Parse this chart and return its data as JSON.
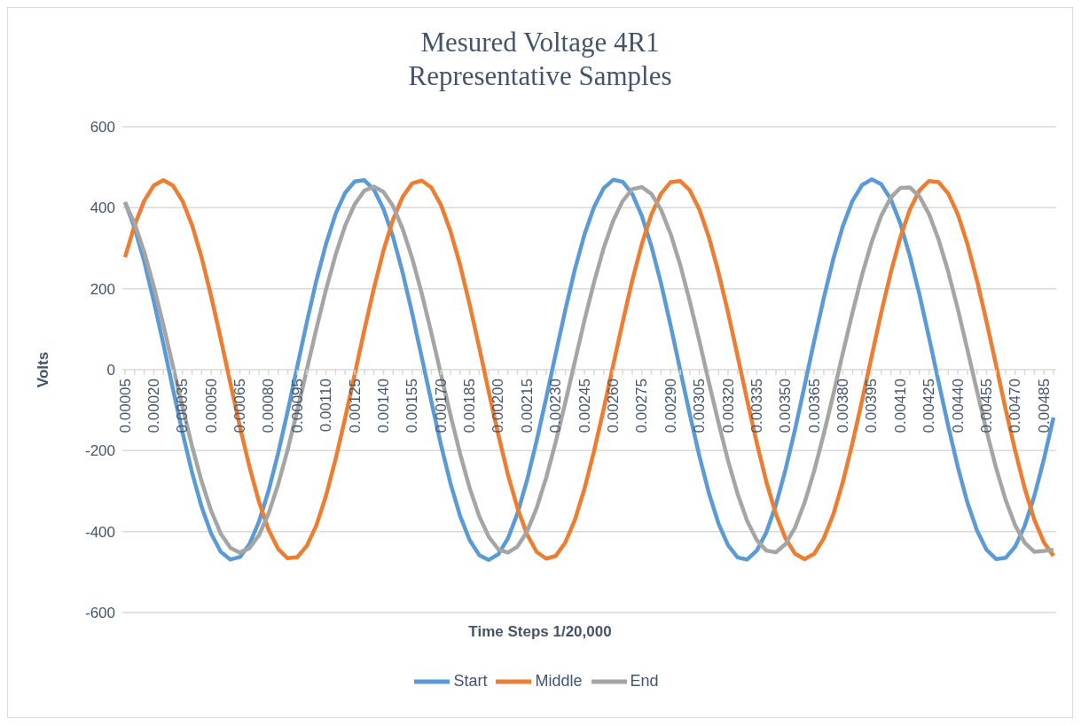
{
  "chart_data": {
    "type": "line",
    "title": "Mesured Voltage 4R1\nRepresentative Samples",
    "xlabel": "Time Steps 1/20,000",
    "ylabel": "Volts",
    "categories": [
      "0.00005",
      null,
      null,
      "0.00020",
      null,
      null,
      "0.00035",
      null,
      null,
      "0.00050",
      null,
      null,
      "0.00065",
      null,
      null,
      "0.00080",
      null,
      null,
      "0.00095",
      null,
      null,
      "0.00110",
      null,
      null,
      "0.00125",
      null,
      null,
      "0.00140",
      null,
      null,
      "0.00155",
      null,
      null,
      "0.00170",
      null,
      null,
      "0.00185",
      null,
      null,
      "0.00200",
      null,
      null,
      "0.00215",
      null,
      null,
      "0.00230",
      null,
      null,
      "0.00245",
      null,
      null,
      "0.00260",
      null,
      null,
      "0.00275",
      null,
      null,
      "0.00290",
      null,
      null,
      "0.00305",
      null,
      null,
      "0.00320",
      null,
      null,
      "0.00335",
      null,
      null,
      "0.00350",
      null,
      null,
      "0.00365",
      null,
      null,
      "0.00380",
      null,
      null,
      "0.00395",
      null,
      null,
      "0.00410",
      null,
      null,
      "0.00425",
      null,
      null,
      "0.00440",
      null,
      null,
      "0.00455",
      null,
      null,
      "0.00470",
      null,
      null,
      "0.00485",
      null
    ],
    "series": [
      {
        "name": "Start",
        "color": "#5b9bd5",
        "values": [
          414,
          350,
          268,
          170,
          64,
          -47,
          -155,
          -254,
          -339,
          -405,
          -450,
          -469,
          -463,
          -431,
          -375,
          -299,
          -206,
          -102,
          8,
          118,
          221,
          311,
          385,
          437,
          465,
          468,
          445,
          397,
          328,
          240,
          139,
          30,
          -79,
          -185,
          -281,
          -361,
          -421,
          -458,
          -470,
          -456,
          -417,
          -355,
          -273,
          -176,
          -70,
          40,
          148,
          248,
          334,
          402,
          448,
          469,
          464,
          434,
          379,
          304,
          213,
          109,
          -1,
          -110,
          -213,
          -305,
          -380,
          -434,
          -464,
          -469,
          -447,
          -402,
          -334,
          -247,
          -148,
          -39,
          71,
          177,
          274,
          355,
          417,
          456,
          470,
          458,
          421,
          361,
          280,
          185,
          79,
          -31,
          -139,
          -240,
          -328,
          -397,
          -445,
          -468,
          -465,
          -437,
          -385,
          -312,
          -221,
          -118
        ]
      },
      {
        "name": "Middle",
        "color": "#ed7d31",
        "values": [
          278,
          357,
          417,
          455,
          468,
          455,
          417,
          357,
          277,
          181,
          76,
          -33,
          -141,
          -240,
          -327,
          -396,
          -443,
          -466,
          -463,
          -435,
          -384,
          -311,
          -221,
          -119,
          -11,
          98,
          201,
          294,
          371,
          427,
          460,
          467,
          450,
          407,
          342,
          259,
          161,
          55,
          -55,
          -161,
          -259,
          -342,
          -407,
          -450,
          -467,
          -460,
          -427,
          -371,
          -294,
          -201,
          -98,
          11,
          119,
          221,
          311,
          384,
          435,
          463,
          466,
          443,
          396,
          327,
          240,
          141,
          33,
          -76,
          -181,
          -277,
          -357,
          -417,
          -455,
          -468,
          -455,
          -417,
          -357,
          -277,
          -181,
          -76,
          33,
          141,
          240,
          327,
          396,
          443,
          466,
          463,
          435,
          384,
          311,
          221,
          119,
          11,
          -98,
          -201,
          -294,
          -371,
          -427,
          -460
        ]
      },
      {
        "name": "End",
        "color": "#a5a5a5",
        "values": [
          413,
          361,
          291,
          206,
          111,
          9,
          -92,
          -189,
          -276,
          -349,
          -405,
          -440,
          -452,
          -441,
          -409,
          -355,
          -283,
          -197,
          -101,
          1,
          102,
          198,
          284,
          356,
          409,
          442,
          452,
          439,
          404,
          348,
          275,
          188,
          91,
          -11,
          -112,
          -207,
          -292,
          -362,
          -413,
          -444,
          -452,
          -437,
          -400,
          -342,
          -267,
          -178,
          -81,
          21,
          122,
          216,
          300,
          368,
          417,
          446,
          451,
          434,
          395,
          335,
          259,
          169,
          71,
          -32,
          -131,
          -225,
          -307,
          -374,
          -421,
          -447,
          -451,
          -431,
          -390,
          -328,
          -250,
          -159,
          -61,
          42,
          141,
          234,
          315,
          380,
          425,
          449,
          450,
          428,
          384,
          321,
          242,
          150,
          50,
          -52,
          -151,
          -243,
          -322,
          -385,
          -428,
          -450,
          -448,
          -445
        ]
      }
    ],
    "ylim": [
      -600,
      600
    ],
    "yticks": [
      -600,
      -400,
      -200,
      0,
      200,
      400,
      600
    ],
    "grid": "y",
    "legend": "bottom",
    "marker": "none",
    "line_style": "solid"
  }
}
